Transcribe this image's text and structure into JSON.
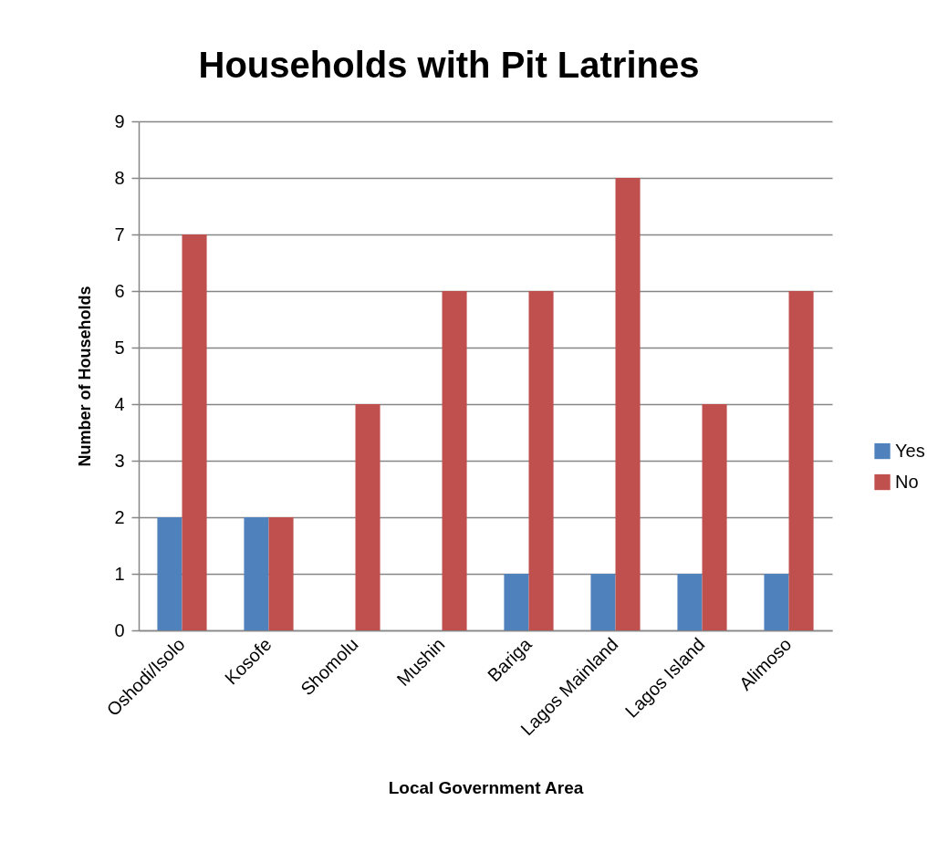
{
  "chart_data": {
    "type": "bar",
    "title": "Households with Pit Latrines",
    "xlabel": "Local Government Area",
    "ylabel": "Number of Households",
    "categories": [
      "Oshodi/Isolo",
      "Kosofe",
      "Shomolu",
      "Mushin",
      "Bariga",
      "Lagos Mainland",
      "Lagos Island",
      "Alimoso"
    ],
    "series": [
      {
        "name": "Yes",
        "color": "#4f81bd",
        "values": [
          2,
          2,
          0,
          0,
          1,
          1,
          1,
          1
        ]
      },
      {
        "name": "No",
        "color": "#c0504d",
        "values": [
          7,
          2,
          4,
          6,
          6,
          8,
          4,
          6
        ]
      }
    ],
    "ylim": [
      0,
      9
    ],
    "yticks": [
      0,
      1,
      2,
      3,
      4,
      5,
      6,
      7,
      8,
      9
    ],
    "grid": "y",
    "legend": "right"
  }
}
